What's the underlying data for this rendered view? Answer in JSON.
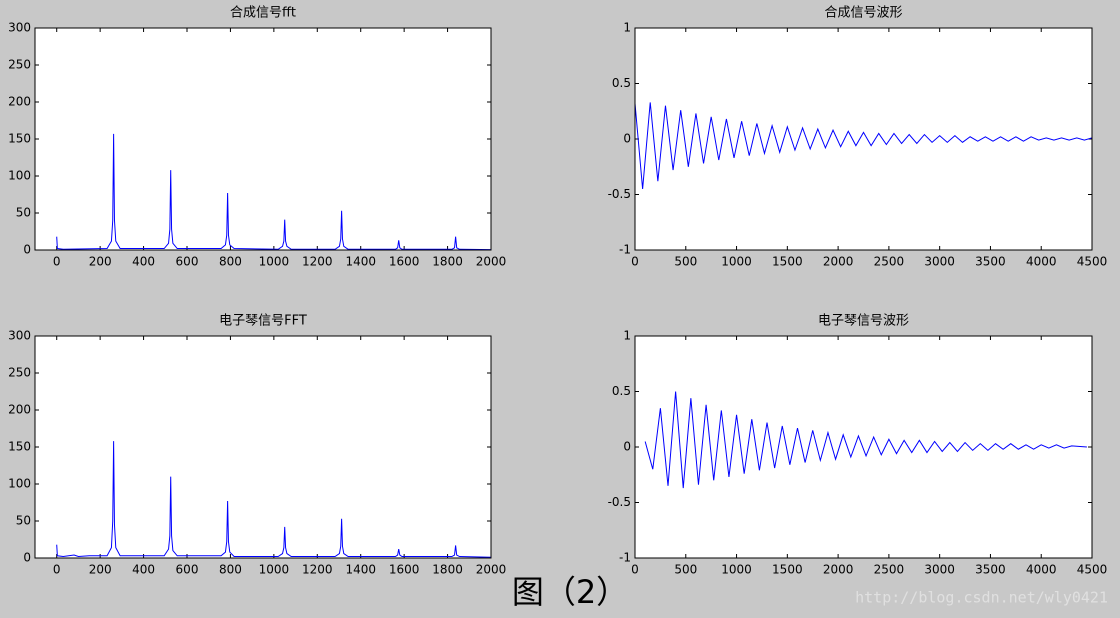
{
  "chart_data": [
    {
      "type": "line",
      "title": "合成信号fft",
      "x": [
        0,
        3,
        30,
        232,
        252,
        258,
        262,
        266,
        272,
        292,
        495,
        515,
        521,
        525,
        529,
        535,
        555,
        757,
        777,
        783,
        787,
        791,
        797,
        817,
        1020,
        1040,
        1046,
        1050,
        1054,
        1060,
        1080,
        1282,
        1302,
        1308,
        1312,
        1316,
        1322,
        1342,
        1560,
        1570,
        1575,
        1580,
        1590,
        1820,
        1832,
        1837,
        1842,
        1855,
        2000
      ],
      "series": [
        {
          "color": "#0000ff",
          "values": [
            18,
            2,
            1,
            2,
            12,
            40,
            157,
            40,
            12,
            2,
            2,
            9,
            28,
            108,
            28,
            9,
            2,
            2,
            7,
            20,
            77,
            20,
            7,
            2,
            1,
            5,
            12,
            41,
            12,
            5,
            1,
            1,
            5,
            15,
            53,
            15,
            5,
            1,
            1,
            3,
            13,
            3,
            1,
            1,
            3,
            18,
            3,
            1,
            0.5
          ]
        }
      ],
      "xlim": [
        -100,
        2000
      ],
      "ylim": [
        0,
        300
      ],
      "xticks": [
        0,
        200,
        400,
        600,
        800,
        1000,
        1200,
        1400,
        1600,
        1800,
        2000
      ],
      "yticks": [
        0,
        50,
        100,
        150,
        200,
        250,
        300
      ]
    },
    {
      "type": "line",
      "title": "合成信号波形",
      "x": [
        0,
        75,
        150,
        225,
        300,
        375,
        450,
        525,
        600,
        675,
        750,
        825,
        900,
        975,
        1050,
        1125,
        1200,
        1275,
        1350,
        1425,
        1500,
        1575,
        1650,
        1725,
        1800,
        1875,
        1950,
        2025,
        2100,
        2175,
        2250,
        2325,
        2400,
        2475,
        2550,
        2625,
        2700,
        2775,
        2850,
        2925,
        3000,
        3075,
        3150,
        3225,
        3300,
        3375,
        3450,
        3525,
        3600,
        3675,
        3750,
        3825,
        3900,
        3975,
        4050,
        4125,
        4200,
        4275,
        4350,
        4425,
        4500
      ],
      "series": [
        {
          "color": "#0000ff",
          "values": [
            0.32,
            -0.45,
            0.33,
            -0.38,
            0.3,
            -0.28,
            0.26,
            -0.25,
            0.23,
            -0.22,
            0.2,
            -0.19,
            0.18,
            -0.17,
            0.16,
            -0.15,
            0.14,
            -0.13,
            0.12,
            -0.12,
            0.11,
            -0.1,
            0.1,
            -0.09,
            0.09,
            -0.08,
            0.08,
            -0.07,
            0.07,
            -0.06,
            0.06,
            -0.06,
            0.05,
            -0.05,
            0.05,
            -0.04,
            0.04,
            -0.04,
            0.04,
            -0.03,
            0.03,
            -0.03,
            0.03,
            -0.03,
            0.02,
            -0.02,
            0.02,
            -0.02,
            0.02,
            -0.02,
            0.02,
            -0.02,
            0.02,
            -0.01,
            0.01,
            -0.01,
            0.01,
            -0.01,
            0.01,
            -0.01,
            0.01
          ]
        }
      ],
      "xlim": [
        0,
        4500
      ],
      "ylim": [
        -1,
        1
      ],
      "xticks": [
        0,
        500,
        1000,
        1500,
        2000,
        2500,
        3000,
        3500,
        4000,
        4500
      ],
      "yticks": [
        -1,
        -0.5,
        0,
        0.5,
        1
      ]
    },
    {
      "type": "line",
      "title": "电子琴信号FFT",
      "x": [
        0,
        3,
        30,
        80,
        100,
        150,
        232,
        252,
        258,
        262,
        266,
        272,
        292,
        400,
        495,
        515,
        521,
        525,
        529,
        535,
        555,
        757,
        777,
        783,
        787,
        791,
        797,
        817,
        1020,
        1040,
        1046,
        1050,
        1054,
        1060,
        1080,
        1282,
        1302,
        1308,
        1312,
        1316,
        1322,
        1342,
        1560,
        1570,
        1575,
        1580,
        1590,
        1820,
        1832,
        1837,
        1842,
        1855,
        2000
      ],
      "series": [
        {
          "color": "#0000ff",
          "values": [
            18,
            3,
            2,
            4,
            2,
            3,
            3,
            14,
            50,
            158,
            45,
            14,
            3,
            3,
            3,
            12,
            30,
            110,
            30,
            10,
            3,
            3,
            8,
            22,
            77,
            22,
            8,
            2,
            2,
            6,
            14,
            42,
            14,
            6,
            2,
            2,
            6,
            16,
            53,
            16,
            6,
            2,
            2,
            4,
            12,
            4,
            2,
            2,
            4,
            17,
            4,
            2,
            1
          ]
        }
      ],
      "xlim": [
        -100,
        2000
      ],
      "ylim": [
        0,
        300
      ],
      "xticks": [
        0,
        200,
        400,
        600,
        800,
        1000,
        1200,
        1400,
        1600,
        1800,
        2000
      ],
      "yticks": [
        0,
        50,
        100,
        150,
        200,
        250,
        300
      ]
    },
    {
      "type": "line",
      "title": "电子琴信号波形",
      "x": [
        100,
        175,
        250,
        325,
        400,
        475,
        550,
        625,
        700,
        775,
        850,
        925,
        1000,
        1075,
        1150,
        1225,
        1300,
        1375,
        1450,
        1525,
        1600,
        1675,
        1750,
        1825,
        1900,
        1975,
        2050,
        2125,
        2200,
        2275,
        2350,
        2425,
        2500,
        2575,
        2650,
        2725,
        2800,
        2875,
        2950,
        3025,
        3100,
        3175,
        3250,
        3325,
        3400,
        3475,
        3550,
        3625,
        3700,
        3775,
        3850,
        3925,
        4000,
        4075,
        4150,
        4225,
        4300,
        4450
      ],
      "series": [
        {
          "color": "#0000ff",
          "values": [
            0.05,
            -0.2,
            0.35,
            -0.35,
            0.5,
            -0.37,
            0.44,
            -0.34,
            0.38,
            -0.3,
            0.33,
            -0.27,
            0.29,
            -0.24,
            0.25,
            -0.21,
            0.22,
            -0.19,
            0.19,
            -0.16,
            0.17,
            -0.14,
            0.15,
            -0.12,
            0.13,
            -0.11,
            0.11,
            -0.09,
            0.1,
            -0.08,
            0.09,
            -0.07,
            0.07,
            -0.06,
            0.06,
            -0.05,
            0.06,
            -0.05,
            0.05,
            -0.04,
            0.04,
            -0.04,
            0.04,
            -0.03,
            0.03,
            -0.03,
            0.03,
            -0.02,
            0.03,
            -0.02,
            0.02,
            -0.02,
            0.02,
            -0.01,
            0.02,
            -0.01,
            0.01,
            0
          ]
        }
      ],
      "xlim": [
        0,
        4500
      ],
      "ylim": [
        -1,
        1
      ],
      "xticks": [
        0,
        500,
        1000,
        1500,
        2000,
        2500,
        3000,
        3500,
        4000,
        4500
      ],
      "yticks": [
        -1,
        -0.5,
        0,
        0.5,
        1
      ]
    }
  ],
  "caption": "图（2）",
  "watermark": "http://blog.csdn.net/wly0421"
}
